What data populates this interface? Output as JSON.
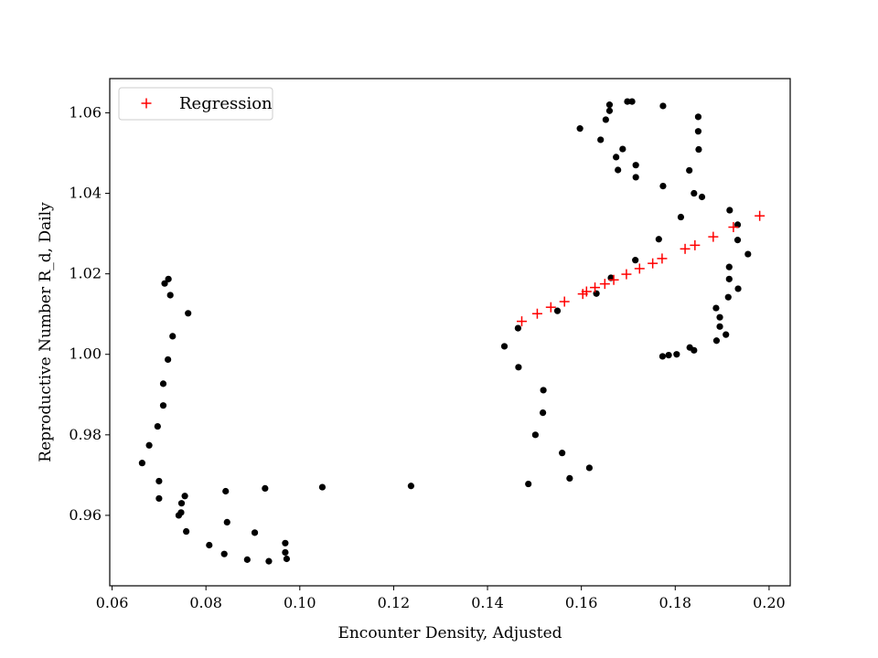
{
  "chart_data": {
    "type": "scatter",
    "title": "",
    "xlabel": "Encounter Density, Adjusted",
    "ylabel": "Reproductive Number R_d, Daily",
    "xlim": [
      0.0595,
      0.2045
    ],
    "ylim": [
      0.9425,
      1.0685
    ],
    "xticks": [
      0.06,
      0.08,
      0.1,
      0.12,
      0.14,
      0.16,
      0.18,
      0.2
    ],
    "xtick_labels": [
      "0.06",
      "0.08",
      "0.10",
      "0.12",
      "0.14",
      "0.16",
      "0.18",
      "0.20"
    ],
    "yticks": [
      0.96,
      0.98,
      1.0,
      1.02,
      1.04,
      1.06
    ],
    "ytick_labels": [
      "0.96",
      "0.98",
      "1.00",
      "1.02",
      "1.04",
      "1.06"
    ],
    "grid": false,
    "legend": {
      "placement": "top-left",
      "entries": [
        "Regression"
      ]
    },
    "series": [
      {
        "marker": "dot",
        "color": "#000000",
        "points": [
          [
            0.072,
            1.0187
          ],
          [
            0.0712,
            1.0176
          ],
          [
            0.0724,
            1.0147
          ],
          [
            0.0762,
            1.0102
          ],
          [
            0.0729,
            1.0045
          ],
          [
            0.0719,
            0.9987
          ],
          [
            0.0709,
            0.9927
          ],
          [
            0.0709,
            0.9873
          ],
          [
            0.0697,
            0.9821
          ],
          [
            0.0679,
            0.9774
          ],
          [
            0.0664,
            0.973
          ],
          [
            0.07,
            0.9685
          ],
          [
            0.07,
            0.9642
          ],
          [
            0.0755,
            0.9648
          ],
          [
            0.0748,
            0.963
          ],
          [
            0.0747,
            0.9607
          ],
          [
            0.0742,
            0.96
          ],
          [
            0.0758,
            0.956
          ],
          [
            0.0842,
            0.966
          ],
          [
            0.0845,
            0.9583
          ],
          [
            0.0807,
            0.9526
          ],
          [
            0.0839,
            0.9504
          ],
          [
            0.0888,
            0.949
          ],
          [
            0.0904,
            0.9557
          ],
          [
            0.0926,
            0.9667
          ],
          [
            0.0934,
            0.9486
          ],
          [
            0.0969,
            0.9531
          ],
          [
            0.0969,
            0.9508
          ],
          [
            0.0972,
            0.9492
          ],
          [
            0.1048,
            0.967
          ],
          [
            0.1237,
            0.9673
          ],
          [
            0.1436,
            1.002
          ],
          [
            0.1465,
            1.0065
          ],
          [
            0.1466,
            0.9968
          ],
          [
            0.1549,
            1.0108
          ],
          [
            0.1519,
            0.9911
          ],
          [
            0.1518,
            0.9855
          ],
          [
            0.1502,
            0.98
          ],
          [
            0.1559,
            0.9755
          ],
          [
            0.1487,
            0.9678
          ],
          [
            0.1575,
            0.9692
          ],
          [
            0.1617,
            0.9718
          ],
          [
            0.1597,
            1.0561
          ],
          [
            0.166,
            1.062
          ],
          [
            0.166,
            1.0605
          ],
          [
            0.1652,
            1.0583
          ],
          [
            0.1641,
            1.0533
          ],
          [
            0.1688,
            1.051
          ],
          [
            0.1674,
            1.049
          ],
          [
            0.1678,
            1.0458
          ],
          [
            0.1698,
            1.0628
          ],
          [
            0.1708,
            1.0628
          ],
          [
            0.1716,
            1.047
          ],
          [
            0.1716,
            1.044
          ],
          [
            0.1774,
            1.0617
          ],
          [
            0.1774,
            1.0418
          ],
          [
            0.1812,
            1.0341
          ],
          [
            0.1765,
            1.0286
          ],
          [
            0.1715,
            1.0234
          ],
          [
            0.1663,
            1.019
          ],
          [
            0.1632,
            1.0151
          ],
          [
            0.1773,
            0.9995
          ],
          [
            0.1786,
            0.9998
          ],
          [
            0.1803,
            1.0
          ],
          [
            0.1831,
            1.0017
          ],
          [
            0.184,
            1.001
          ],
          [
            0.183,
            1.0457
          ],
          [
            0.184,
            1.04
          ],
          [
            0.1857,
            1.0391
          ],
          [
            0.1849,
            1.059
          ],
          [
            0.1849,
            1.0554
          ],
          [
            0.185,
            1.0509
          ],
          [
            0.1916,
            1.0358
          ],
          [
            0.1933,
            1.0322
          ],
          [
            0.1933,
            1.0284
          ],
          [
            0.1955,
            1.0249
          ],
          [
            0.1915,
            1.0217
          ],
          [
            0.1915,
            1.0187
          ],
          [
            0.1934,
            1.0163
          ],
          [
            0.1913,
            1.0142
          ],
          [
            0.1887,
            1.0115
          ],
          [
            0.1895,
            1.0092
          ],
          [
            0.1895,
            1.0069
          ],
          [
            0.1908,
            1.0049
          ],
          [
            0.1888,
            1.0034
          ]
        ]
      },
      {
        "name": "Regression",
        "marker": "plus",
        "color": "#ff0000",
        "points": [
          [
            0.1473,
            1.0082
          ],
          [
            0.1506,
            1.0101
          ],
          [
            0.1535,
            1.0117
          ],
          [
            0.1564,
            1.0131
          ],
          [
            0.1603,
            1.015
          ],
          [
            0.1611,
            1.0156
          ],
          [
            0.1629,
            1.0166
          ],
          [
            0.165,
            1.0175
          ],
          [
            0.1669,
            1.0185
          ],
          [
            0.1696,
            1.0199
          ],
          [
            0.1724,
            1.0213
          ],
          [
            0.1752,
            1.0226
          ],
          [
            0.1772,
            1.0238
          ],
          [
            0.1821,
            1.0262
          ],
          [
            0.1842,
            1.0271
          ],
          [
            0.1881,
            1.0292
          ],
          [
            0.1924,
            1.0316
          ],
          [
            0.198,
            1.0344
          ]
        ]
      }
    ]
  }
}
